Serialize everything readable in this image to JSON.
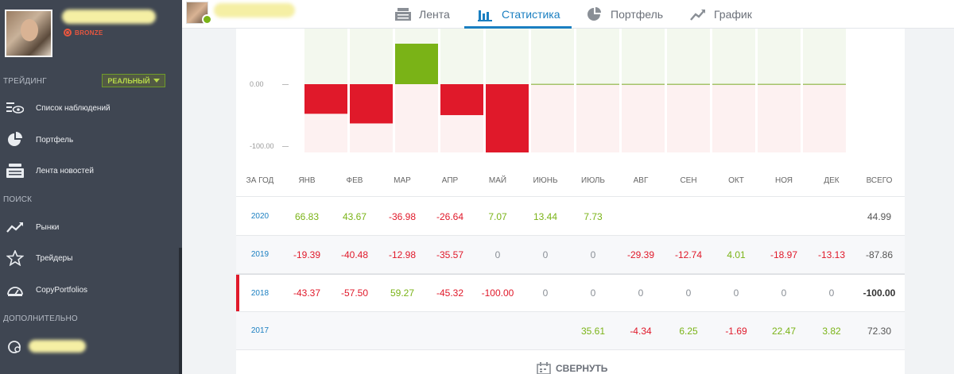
{
  "sidebar": {
    "badge": "BRONZE",
    "trading_title": "ТРЕЙДИНГ",
    "mode": "РЕАЛЬНЫЙ",
    "items_trading": [
      {
        "label": "Список наблюдений",
        "icon": "eye-list-icon"
      },
      {
        "label": "Портфель",
        "icon": "pie-chart-icon"
      },
      {
        "label": "Лента новостей",
        "icon": "news-icon"
      }
    ],
    "search_title": "ПОИСК",
    "items_search": [
      {
        "label": "Рынки",
        "icon": "trend-icon"
      },
      {
        "label": "Трейдеры",
        "icon": "star-icon"
      },
      {
        "label": "CopyPortfolios",
        "icon": "copy-portfolio-icon"
      }
    ],
    "extra_title": "ДОПОЛНИТЕЛЬНО"
  },
  "topbar": {
    "tabs": [
      {
        "label": "Лента",
        "icon": "feed-icon",
        "active": false
      },
      {
        "label": "Статистика",
        "icon": "bar-chart-icon",
        "active": true
      },
      {
        "label": "Портфель",
        "icon": "pie-chart-icon",
        "active": false
      },
      {
        "label": "График",
        "icon": "line-chart-icon",
        "active": false
      }
    ]
  },
  "colors": {
    "positive": "#7ab317",
    "negative": "#e0192a",
    "accent": "#1a7fc1",
    "sidebar": "#3f4652"
  },
  "chart_data": {
    "type": "bar",
    "categories": [
      "ЯНВ",
      "ФЕВ",
      "МАР",
      "АПР",
      "МАЙ",
      "ИЮНЬ",
      "ИЮЛЬ",
      "АВГ",
      "СЕН",
      "ОКТ",
      "НОЯ",
      "ДЕК"
    ],
    "values": [
      -43.37,
      -57.5,
      59.27,
      -45.32,
      -100.0,
      0,
      0,
      0,
      0,
      0,
      0,
      0
    ],
    "yticks": [
      "0.00",
      "-100.00"
    ],
    "ylim": [
      -100,
      65
    ]
  },
  "table": {
    "headers": [
      "ЗА ГОД",
      "ЯНВ",
      "ФЕВ",
      "МАР",
      "АПР",
      "МАЙ",
      "ИЮНЬ",
      "ИЮЛЬ",
      "АВГ",
      "СЕН",
      "ОКТ",
      "НОЯ",
      "ДЕК",
      "ВСЕГО"
    ],
    "rows": [
      {
        "year": "2020",
        "values": [
          "66.83",
          "43.67",
          "-36.98",
          "-26.64",
          "7.07",
          "13.44",
          "7.73",
          "",
          "",
          "",
          "",
          ""
        ],
        "total": "44.99"
      },
      {
        "year": "2019",
        "values": [
          "-19.39",
          "-40.48",
          "-12.98",
          "-35.57",
          "0",
          "0",
          "0",
          "-29.39",
          "-12.74",
          "4.01",
          "-18.97",
          "-13.13"
        ],
        "total": "-87.86"
      },
      {
        "year": "2018",
        "values": [
          "-43.37",
          "-57.50",
          "59.27",
          "-45.32",
          "-100.00",
          "0",
          "0",
          "0",
          "0",
          "0",
          "0",
          "0"
        ],
        "total": "-100.00",
        "selected": true
      },
      {
        "year": "2017",
        "values": [
          "",
          "",
          "",
          "",
          "",
          "",
          "35.61",
          "-4.34",
          "6.25",
          "-1.69",
          "22.47",
          "3.82"
        ],
        "total": "72.30"
      }
    ]
  },
  "collapse_label": "СВЕРНУТЬ"
}
